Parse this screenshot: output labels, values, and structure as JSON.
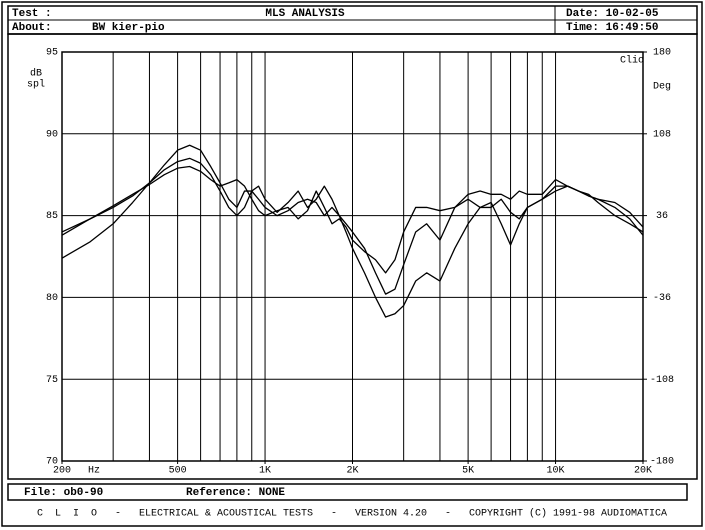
{
  "header": {
    "test": "Test :",
    "about_label": "About:",
    "about": "BW kier-pio",
    "date": "Date: 10-02-05",
    "time": "Time: 16:49:50"
  },
  "chart_data": {
    "type": "line",
    "title": "MLS ANALYSIS",
    "brand": "Clio",
    "ylabel_lines": [
      "dB",
      "spl"
    ],
    "xlabel": "Hz",
    "y2label": "Deg",
    "log_x": true,
    "grid": true,
    "xlim": [
      200,
      20000
    ],
    "xticks": [
      200,
      500,
      {
        "value": 1000,
        "label": "1K"
      },
      {
        "value": 2000,
        "label": "2K"
      },
      {
        "value": 5000,
        "label": "5K"
      },
      {
        "value": 10000,
        "label": "10K"
      },
      {
        "value": 20000,
        "label": "20K"
      }
    ],
    "xgrid": [
      300,
      400,
      500,
      600,
      700,
      800,
      900,
      1000,
      2000,
      3000,
      4000,
      5000,
      6000,
      7000,
      8000,
      9000,
      10000
    ],
    "ylim": [
      70,
      95
    ],
    "yticks": [
      70,
      75,
      80,
      85,
      90,
      95
    ],
    "y2lim": [
      -180,
      180
    ],
    "y2ticks": [
      -180,
      -108,
      -36,
      36,
      108,
      180
    ],
    "x": [
      200,
      250,
      300,
      350,
      400,
      450,
      500,
      550,
      600,
      650,
      700,
      750,
      800,
      850,
      900,
      950,
      1000,
      1100,
      1200,
      1300,
      1400,
      1500,
      1600,
      1700,
      1800,
      1900,
      2000,
      2200,
      2400,
      2600,
      2800,
      3000,
      3300,
      3600,
      4000,
      4500,
      5000,
      5500,
      6000,
      6500,
      7000,
      7500,
      8000,
      9000,
      10000,
      11000,
      12000,
      13000,
      14000,
      16000,
      18000,
      20000
    ],
    "series": [
      {
        "color": "#000000",
        "values": [
          82.4,
          83.4,
          84.5,
          85.8,
          87,
          88.1,
          89,
          89.3,
          89,
          88,
          87,
          86,
          85.5,
          86.5,
          86.5,
          86,
          85.5,
          85,
          85.3,
          85.8,
          86,
          85.8,
          85,
          85.5,
          85,
          84,
          83,
          81.5,
          80,
          78.8,
          79,
          79.5,
          81,
          81.5,
          81,
          83,
          84.5,
          85.5,
          85.8,
          84.5,
          83.2,
          84.5,
          85.5,
          86,
          86.5,
          86.8,
          86.5,
          86.2,
          86,
          85.5,
          84.8,
          83.8
        ]
      },
      {
        "color": "#000000",
        "values": [
          84,
          84.8,
          85.5,
          86.2,
          87,
          87.8,
          88.3,
          88.5,
          88.2,
          87.5,
          86.5,
          85.5,
          85,
          85.5,
          86.5,
          86.8,
          86,
          85.2,
          85.8,
          86.5,
          85.5,
          86,
          86.8,
          86,
          85,
          84.5,
          84,
          83,
          81.5,
          80.2,
          80.5,
          82,
          84,
          84.5,
          83.5,
          85.5,
          86,
          85.5,
          85.5,
          86,
          85.2,
          84.8,
          85.5,
          86,
          86.8,
          86.8,
          86.5,
          86.2,
          86,
          85.8,
          85.2,
          84.3
        ]
      },
      {
        "color": "#000000",
        "values": [
          83.8,
          84.8,
          85.6,
          86.3,
          86.9,
          87.5,
          87.9,
          88,
          87.7,
          87.2,
          86.8,
          87,
          87.2,
          86.8,
          86,
          85.3,
          85,
          85.3,
          85.5,
          84.8,
          85.3,
          86.5,
          85.5,
          84.5,
          84.8,
          84.3,
          83.5,
          82.8,
          82.3,
          81.5,
          82.3,
          84,
          85.5,
          85.5,
          85.3,
          85.5,
          86.3,
          86.5,
          86.3,
          86.3,
          86,
          86.5,
          86.3,
          86.3,
          87.2,
          86.8,
          86.5,
          86.3,
          85.8,
          85,
          84.5,
          84
        ]
      }
    ]
  },
  "footer": {
    "file": "File: ob0-90",
    "reference": "Reference: NONE",
    "credits": "C  L  I  O   -   ELECTRICAL & ACOUSTICAL TESTS   -   VERSION 4.20   -   COPYRIGHT (C) 1991-98 AUDIOMATICA"
  }
}
